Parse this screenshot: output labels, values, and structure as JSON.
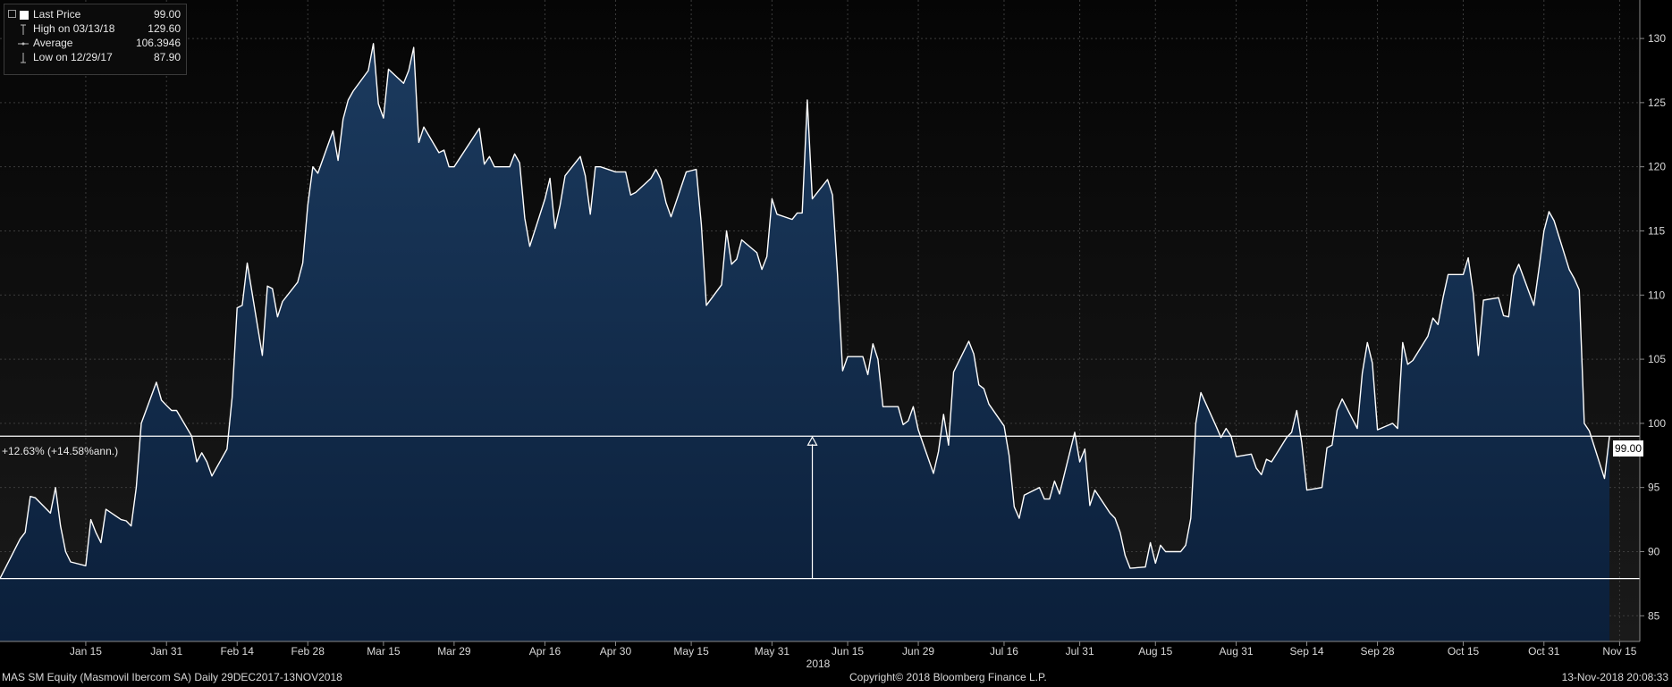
{
  "legend": {
    "rows": [
      {
        "label": "Last Price",
        "value": "99.00",
        "icon": "filled-square-icon"
      },
      {
        "label": "High on 03/13/18",
        "value": "129.60",
        "icon": "high-marker-icon"
      },
      {
        "label": "Average",
        "value": "106.3946",
        "icon": "average-line-icon"
      },
      {
        "label": "Low on 12/29/17",
        "value": "87.90",
        "icon": "low-marker-icon"
      }
    ]
  },
  "annotation": "+12.63% (+14.58%ann.)",
  "last_value_tag": "99.00",
  "footer": {
    "left": "MAS SM Equity (Masmovil Ibercom SA)  Daily 29DEC2017-13NOV2018",
    "center": "Copyright© 2018 Bloomberg Finance L.P.",
    "right": "13-Nov-2018 20:08:33"
  },
  "colors": {
    "background": "#000000",
    "fill_top": "#1b3a5e",
    "fill_bottom": "#0b1f3a",
    "line": "#ffffff",
    "grid": "#3c3c3c"
  },
  "chart_data": {
    "type": "area",
    "title": "",
    "xlabel": "",
    "ylabel": "",
    "ylim": [
      83,
      133
    ],
    "yticks": [
      85,
      90,
      95,
      100,
      105,
      110,
      115,
      120,
      125,
      130
    ],
    "xticks": [
      {
        "label": "Jan 15",
        "date": "2018-01-15"
      },
      {
        "label": "Jan 31",
        "date": "2018-01-31"
      },
      {
        "label": "Feb 14",
        "date": "2018-02-14"
      },
      {
        "label": "Feb 28",
        "date": "2018-02-28"
      },
      {
        "label": "Mar 15",
        "date": "2018-03-15"
      },
      {
        "label": "Mar 29",
        "date": "2018-03-29"
      },
      {
        "label": "Apr 16",
        "date": "2018-04-16"
      },
      {
        "label": "Apr 30",
        "date": "2018-04-30"
      },
      {
        "label": "May 15",
        "date": "2018-05-15"
      },
      {
        "label": "May 31",
        "date": "2018-05-31"
      },
      {
        "label": "Jun 15",
        "date": "2018-06-15"
      },
      {
        "label": "Jun 29",
        "date": "2018-06-29"
      },
      {
        "label": "Jul 16",
        "date": "2018-07-16"
      },
      {
        "label": "Jul 31",
        "date": "2018-07-31"
      },
      {
        "label": "Aug 15",
        "date": "2018-08-15"
      },
      {
        "label": "Aug 31",
        "date": "2018-08-31"
      },
      {
        "label": "Sep 14",
        "date": "2018-09-14"
      },
      {
        "label": "Sep 28",
        "date": "2018-09-28"
      },
      {
        "label": "Oct 15",
        "date": "2018-10-15"
      },
      {
        "label": "Oct 31",
        "date": "2018-10-31"
      },
      {
        "label": "Nov 15",
        "date": "2018-11-15"
      }
    ],
    "year_label": "2018",
    "grid": true,
    "reference_lines": [
      {
        "value": 87.9
      },
      {
        "value": 99.0
      }
    ],
    "series": [
      {
        "name": "Last Price",
        "points": [
          [
            "2017-12-29",
            87.9
          ],
          [
            "2018-01-02",
            91.0
          ],
          [
            "2018-01-03",
            91.5
          ],
          [
            "2018-01-04",
            94.3
          ],
          [
            "2018-01-05",
            94.2
          ],
          [
            "2018-01-08",
            93.0
          ],
          [
            "2018-01-09",
            95.0
          ],
          [
            "2018-01-10",
            92.0
          ],
          [
            "2018-01-11",
            90.0
          ],
          [
            "2018-01-12",
            89.2
          ],
          [
            "2018-01-15",
            88.9
          ],
          [
            "2018-01-16",
            92.5
          ],
          [
            "2018-01-17",
            91.5
          ],
          [
            "2018-01-18",
            90.7
          ],
          [
            "2018-01-19",
            93.3
          ],
          [
            "2018-01-22",
            92.5
          ],
          [
            "2018-01-23",
            92.4
          ],
          [
            "2018-01-24",
            92.0
          ],
          [
            "2018-01-25",
            95.0
          ],
          [
            "2018-01-26",
            100.0
          ],
          [
            "2018-01-29",
            103.2
          ],
          [
            "2018-01-30",
            101.8
          ],
          [
            "2018-01-31",
            101.4
          ],
          [
            "2018-02-01",
            101.0
          ],
          [
            "2018-02-02",
            101.0
          ],
          [
            "2018-02-05",
            99.0
          ],
          [
            "2018-02-06",
            97.0
          ],
          [
            "2018-02-07",
            97.7
          ],
          [
            "2018-02-08",
            97.0
          ],
          [
            "2018-02-09",
            95.9
          ],
          [
            "2018-02-12",
            98.0
          ],
          [
            "2018-02-13",
            102.0
          ],
          [
            "2018-02-14",
            109.0
          ],
          [
            "2018-02-15",
            109.2
          ],
          [
            "2018-02-16",
            112.5
          ],
          [
            "2018-02-19",
            105.3
          ],
          [
            "2018-02-20",
            110.7
          ],
          [
            "2018-02-21",
            110.5
          ],
          [
            "2018-02-22",
            108.3
          ],
          [
            "2018-02-23",
            109.5
          ],
          [
            "2018-02-26",
            111.0
          ],
          [
            "2018-02-27",
            112.5
          ],
          [
            "2018-02-28",
            117.0
          ],
          [
            "2018-03-01",
            120.0
          ],
          [
            "2018-03-02",
            119.5
          ],
          [
            "2018-03-05",
            122.8
          ],
          [
            "2018-03-06",
            120.5
          ],
          [
            "2018-03-07",
            123.7
          ],
          [
            "2018-03-08",
            125.2
          ],
          [
            "2018-03-09",
            125.9
          ],
          [
            "2018-03-12",
            127.5
          ],
          [
            "2018-03-13",
            129.6
          ],
          [
            "2018-03-14",
            124.9
          ],
          [
            "2018-03-15",
            123.8
          ],
          [
            "2018-03-16",
            127.6
          ],
          [
            "2018-03-19",
            126.5
          ],
          [
            "2018-03-20",
            127.5
          ],
          [
            "2018-03-21",
            129.3
          ],
          [
            "2018-03-22",
            121.9
          ],
          [
            "2018-03-23",
            123.1
          ],
          [
            "2018-03-26",
            121.1
          ],
          [
            "2018-03-27",
            121.3
          ],
          [
            "2018-03-28",
            120.0
          ],
          [
            "2018-03-29",
            120.0
          ],
          [
            "2018-04-03",
            123.0
          ],
          [
            "2018-04-04",
            120.2
          ],
          [
            "2018-04-05",
            120.8
          ],
          [
            "2018-04-06",
            120.0
          ],
          [
            "2018-04-09",
            120.0
          ],
          [
            "2018-04-10",
            121.0
          ],
          [
            "2018-04-11",
            120.3
          ],
          [
            "2018-04-12",
            116.0
          ],
          [
            "2018-04-13",
            113.8
          ],
          [
            "2018-04-16",
            117.5
          ],
          [
            "2018-04-17",
            119.1
          ],
          [
            "2018-04-18",
            115.2
          ],
          [
            "2018-04-19",
            117.0
          ],
          [
            "2018-04-20",
            119.3
          ],
          [
            "2018-04-23",
            120.8
          ],
          [
            "2018-04-24",
            119.3
          ],
          [
            "2018-04-25",
            116.3
          ],
          [
            "2018-04-26",
            120.0
          ],
          [
            "2018-04-27",
            120.0
          ],
          [
            "2018-04-30",
            119.6
          ],
          [
            "2018-05-02",
            119.6
          ],
          [
            "2018-05-03",
            117.8
          ],
          [
            "2018-05-04",
            118.0
          ],
          [
            "2018-05-07",
            119.1
          ],
          [
            "2018-05-08",
            119.8
          ],
          [
            "2018-05-09",
            119.0
          ],
          [
            "2018-05-10",
            117.2
          ],
          [
            "2018-05-11",
            116.1
          ],
          [
            "2018-05-14",
            119.6
          ],
          [
            "2018-05-15",
            119.7
          ],
          [
            "2018-05-16",
            119.8
          ],
          [
            "2018-05-17",
            115.5
          ],
          [
            "2018-05-18",
            109.2
          ],
          [
            "2018-05-21",
            110.8
          ],
          [
            "2018-05-22",
            115.0
          ],
          [
            "2018-05-23",
            112.4
          ],
          [
            "2018-05-24",
            112.8
          ],
          [
            "2018-05-25",
            114.3
          ],
          [
            "2018-05-28",
            113.3
          ],
          [
            "2018-05-29",
            112.0
          ],
          [
            "2018-05-30",
            113.0
          ],
          [
            "2018-05-31",
            117.5
          ],
          [
            "2018-06-01",
            116.3
          ],
          [
            "2018-06-04",
            115.9
          ],
          [
            "2018-06-05",
            116.4
          ],
          [
            "2018-06-06",
            116.4
          ],
          [
            "2018-06-07",
            125.2
          ],
          [
            "2018-06-08",
            117.5
          ],
          [
            "2018-06-11",
            119.0
          ],
          [
            "2018-06-12",
            117.8
          ],
          [
            "2018-06-13",
            111.5
          ],
          [
            "2018-06-14",
            104.1
          ],
          [
            "2018-06-15",
            105.2
          ],
          [
            "2018-06-18",
            105.2
          ],
          [
            "2018-06-19",
            103.8
          ],
          [
            "2018-06-20",
            106.2
          ],
          [
            "2018-06-21",
            105.0
          ],
          [
            "2018-06-22",
            101.3
          ],
          [
            "2018-06-25",
            101.3
          ],
          [
            "2018-06-26",
            99.9
          ],
          [
            "2018-06-27",
            100.2
          ],
          [
            "2018-06-28",
            101.3
          ],
          [
            "2018-06-29",
            99.5
          ],
          [
            "2018-07-02",
            96.1
          ],
          [
            "2018-07-03",
            97.8
          ],
          [
            "2018-07-04",
            100.7
          ],
          [
            "2018-07-05",
            98.3
          ],
          [
            "2018-07-06",
            104.0
          ],
          [
            "2018-07-09",
            106.4
          ],
          [
            "2018-07-10",
            105.4
          ],
          [
            "2018-07-11",
            103.0
          ],
          [
            "2018-07-12",
            102.7
          ],
          [
            "2018-07-13",
            101.5
          ],
          [
            "2018-07-16",
            99.8
          ],
          [
            "2018-07-17",
            97.5
          ],
          [
            "2018-07-18",
            93.5
          ],
          [
            "2018-07-19",
            92.6
          ],
          [
            "2018-07-20",
            94.4
          ],
          [
            "2018-07-23",
            95.0
          ],
          [
            "2018-07-24",
            94.1
          ],
          [
            "2018-07-25",
            94.1
          ],
          [
            "2018-07-26",
            95.5
          ],
          [
            "2018-07-27",
            94.5
          ],
          [
            "2018-07-30",
            99.3
          ],
          [
            "2018-07-31",
            97.0
          ],
          [
            "2018-08-01",
            98.0
          ],
          [
            "2018-08-02",
            93.6
          ],
          [
            "2018-08-03",
            94.8
          ],
          [
            "2018-08-06",
            93.0
          ],
          [
            "2018-08-07",
            92.6
          ],
          [
            "2018-08-08",
            91.5
          ],
          [
            "2018-08-09",
            89.7
          ],
          [
            "2018-08-10",
            88.7
          ],
          [
            "2018-08-13",
            88.8
          ],
          [
            "2018-08-14",
            90.7
          ],
          [
            "2018-08-15",
            89.1
          ],
          [
            "2018-08-16",
            90.5
          ],
          [
            "2018-08-17",
            90.0
          ],
          [
            "2018-08-20",
            90.0
          ],
          [
            "2018-08-21",
            90.5
          ],
          [
            "2018-08-22",
            92.6
          ],
          [
            "2018-08-23",
            100.0
          ],
          [
            "2018-08-24",
            102.4
          ],
          [
            "2018-08-27",
            99.8
          ],
          [
            "2018-08-28",
            98.9
          ],
          [
            "2018-08-29",
            99.6
          ],
          [
            "2018-08-30",
            99.0
          ],
          [
            "2018-08-31",
            97.4
          ],
          [
            "2018-09-03",
            97.6
          ],
          [
            "2018-09-04",
            96.5
          ],
          [
            "2018-09-05",
            96.0
          ],
          [
            "2018-09-06",
            97.2
          ],
          [
            "2018-09-07",
            97.0
          ],
          [
            "2018-09-10",
            98.9
          ],
          [
            "2018-09-11",
            99.3
          ],
          [
            "2018-09-12",
            101.0
          ],
          [
            "2018-09-13",
            98.5
          ],
          [
            "2018-09-14",
            94.8
          ],
          [
            "2018-09-17",
            95.0
          ],
          [
            "2018-09-18",
            98.1
          ],
          [
            "2018-09-19",
            98.3
          ],
          [
            "2018-09-20",
            101.0
          ],
          [
            "2018-09-21",
            101.9
          ],
          [
            "2018-09-24",
            99.6
          ],
          [
            "2018-09-25",
            103.9
          ],
          [
            "2018-09-26",
            106.3
          ],
          [
            "2018-09-27",
            104.7
          ],
          [
            "2018-09-28",
            99.5
          ],
          [
            "2018-10-01",
            100.0
          ],
          [
            "2018-10-02",
            99.6
          ],
          [
            "2018-10-03",
            106.3
          ],
          [
            "2018-10-04",
            104.6
          ],
          [
            "2018-10-05",
            104.9
          ],
          [
            "2018-10-08",
            106.8
          ],
          [
            "2018-10-09",
            108.2
          ],
          [
            "2018-10-10",
            107.7
          ],
          [
            "2018-10-11",
            109.8
          ],
          [
            "2018-10-12",
            111.6
          ],
          [
            "2018-10-15",
            111.6
          ],
          [
            "2018-10-16",
            112.9
          ],
          [
            "2018-10-17",
            110.1
          ],
          [
            "2018-10-18",
            105.3
          ],
          [
            "2018-10-19",
            109.6
          ],
          [
            "2018-10-22",
            109.8
          ],
          [
            "2018-10-23",
            108.4
          ],
          [
            "2018-10-24",
            108.3
          ],
          [
            "2018-10-25",
            111.5
          ],
          [
            "2018-10-26",
            112.4
          ],
          [
            "2018-10-29",
            109.2
          ],
          [
            "2018-10-30",
            112.0
          ],
          [
            "2018-10-31",
            115.0
          ],
          [
            "2018-11-01",
            116.5
          ],
          [
            "2018-11-02",
            115.8
          ],
          [
            "2018-11-05",
            112.0
          ],
          [
            "2018-11-06",
            111.3
          ],
          [
            "2018-11-07",
            110.4
          ],
          [
            "2018-11-08",
            100.0
          ],
          [
            "2018-11-09",
            99.4
          ],
          [
            "2018-11-12",
            95.7
          ],
          [
            "2018-11-13",
            99.0
          ]
        ]
      }
    ]
  }
}
